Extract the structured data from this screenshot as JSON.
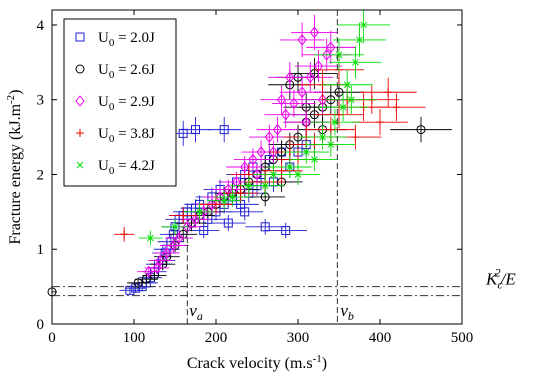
{
  "chart_data": {
    "type": "scatter",
    "xlabel": "Crack velocity (m.s",
    "xlabel_sup": "-1",
    "xlabel_end": ")",
    "ylabel": "Fracture energy (kJ.m",
    "ylabel_sup": "-2",
    "ylabel_end": ")",
    "xlim": [
      0,
      500
    ],
    "ylim": [
      0,
      4.2
    ],
    "xticks": [
      "0",
      "100",
      "200",
      "300",
      "400",
      "500"
    ],
    "yticks": [
      "0",
      "1",
      "2",
      "3",
      "4"
    ],
    "legend_position": "top-left",
    "grid": false,
    "annotations": {
      "va": {
        "base": "v",
        "sub": "a",
        "x": 165
      },
      "vb": {
        "base": "v",
        "sub": "b",
        "x": 348
      },
      "kc": {
        "base": "K",
        "sub": "c",
        "sup": "2",
        "rest": "/E",
        "levels": [
          0.38,
          0.5
        ]
      }
    },
    "series": [
      {
        "name": "U",
        "name_sub": "0",
        "name_rest": " = 2.0J",
        "marker": "square",
        "color": "#1f1fd0",
        "points": [
          [
            95,
            0.45
          ],
          [
            102,
            0.48
          ],
          [
            110,
            0.5
          ],
          [
            115,
            0.55
          ],
          [
            120,
            0.62
          ],
          [
            125,
            0.7
          ],
          [
            130,
            0.8
          ],
          [
            135,
            0.85
          ],
          [
            138,
            0.95
          ],
          [
            140,
            1.0
          ],
          [
            145,
            1.1
          ],
          [
            148,
            1.2
          ],
          [
            150,
            1.3
          ],
          [
            155,
            1.4
          ],
          [
            160,
            1.45
          ],
          [
            165,
            1.5
          ],
          [
            170,
            1.35
          ],
          [
            175,
            1.55
          ],
          [
            180,
            1.6
          ],
          [
            185,
            1.25
          ],
          [
            190,
            1.4
          ],
          [
            195,
            1.7
          ],
          [
            200,
            1.5
          ],
          [
            205,
            1.8
          ],
          [
            210,
            1.6
          ],
          [
            215,
            1.35
          ],
          [
            220,
            1.7
          ],
          [
            225,
            1.9
          ],
          [
            230,
            1.6
          ],
          [
            235,
            2.0
          ],
          [
            240,
            1.75
          ],
          [
            245,
            2.1
          ],
          [
            250,
            1.85
          ],
          [
            255,
            2.0
          ],
          [
            260,
            1.3
          ],
          [
            265,
            2.2
          ],
          [
            270,
            1.9
          ],
          [
            280,
            2.3
          ],
          [
            285,
            1.25
          ],
          [
            290,
            2.1
          ],
          [
            300,
            2.3
          ],
          [
            310,
            2.4
          ],
          [
            160,
            2.55
          ],
          [
            175,
            2.6
          ],
          [
            210,
            2.6
          ],
          [
            235,
            1.5
          ]
        ]
      },
      {
        "name": "U",
        "name_sub": "0",
        "name_rest": " = 2.6J",
        "marker": "circle",
        "color": "#000000",
        "points": [
          [
            0,
            0.43
          ],
          [
            105,
            0.55
          ],
          [
            115,
            0.6
          ],
          [
            125,
            0.65
          ],
          [
            135,
            0.8
          ],
          [
            140,
            0.9
          ],
          [
            150,
            1.05
          ],
          [
            160,
            1.2
          ],
          [
            170,
            1.35
          ],
          [
            180,
            1.45
          ],
          [
            190,
            1.5
          ],
          [
            200,
            1.6
          ],
          [
            210,
            1.7
          ],
          [
            220,
            1.75
          ],
          [
            230,
            1.8
          ],
          [
            240,
            1.9
          ],
          [
            250,
            2.0
          ],
          [
            260,
            2.1
          ],
          [
            270,
            2.2
          ],
          [
            280,
            2.3
          ],
          [
            290,
            2.4
          ],
          [
            300,
            2.5
          ],
          [
            310,
            2.7
          ],
          [
            320,
            2.8
          ],
          [
            330,
            2.9
          ],
          [
            340,
            3.0
          ],
          [
            350,
            3.1
          ],
          [
            290,
            3.2
          ],
          [
            300,
            3.3
          ],
          [
            320,
            3.35
          ],
          [
            310,
            2.9
          ],
          [
            330,
            2.6
          ],
          [
            450,
            2.6
          ],
          [
            280,
            1.9
          ],
          [
            260,
            1.7
          ]
        ]
      },
      {
        "name": "U",
        "name_sub": "0",
        "name_rest": " = 2.9J",
        "marker": "diamond",
        "color": "#ee00ee",
        "points": [
          [
            118,
            0.7
          ],
          [
            128,
            0.75
          ],
          [
            132,
            0.85
          ],
          [
            140,
            0.95
          ],
          [
            148,
            1.05
          ],
          [
            155,
            1.15
          ],
          [
            165,
            1.3
          ],
          [
            175,
            1.4
          ],
          [
            185,
            1.5
          ],
          [
            195,
            1.6
          ],
          [
            205,
            1.7
          ],
          [
            215,
            1.8
          ],
          [
            225,
            1.9
          ],
          [
            235,
            2.1
          ],
          [
            245,
            2.2
          ],
          [
            255,
            2.3
          ],
          [
            265,
            2.5
          ],
          [
            275,
            2.6
          ],
          [
            285,
            2.8
          ],
          [
            295,
            2.95
          ],
          [
            305,
            3.1
          ],
          [
            315,
            3.3
          ],
          [
            325,
            3.45
          ],
          [
            335,
            3.6
          ],
          [
            340,
            3.7
          ],
          [
            305,
            3.8
          ],
          [
            320,
            3.9
          ],
          [
            290,
            3.3
          ],
          [
            280,
            3.0
          ],
          [
            310,
            2.7
          ],
          [
            330,
            3.0
          ],
          [
            270,
            2.3
          ],
          [
            250,
            2.0
          ]
        ]
      },
      {
        "name": "U",
        "name_sub": "0",
        "name_rest": " = 3.8J",
        "marker": "plus",
        "color": "#ee0000",
        "points": [
          [
            88,
            1.2
          ],
          [
            160,
            1.45
          ],
          [
            200,
            1.6
          ],
          [
            230,
            1.75
          ],
          [
            260,
            1.9
          ],
          [
            280,
            2.05
          ],
          [
            300,
            2.2
          ],
          [
            320,
            2.4
          ],
          [
            340,
            2.6
          ],
          [
            350,
            2.8
          ],
          [
            360,
            3.0
          ],
          [
            380,
            2.9
          ],
          [
            400,
            2.7
          ],
          [
            420,
            2.9
          ],
          [
            410,
            3.1
          ],
          [
            370,
            2.5
          ],
          [
            330,
            3.2
          ],
          [
            350,
            3.4
          ],
          [
            390,
            3.0
          ],
          [
            310,
            2.5
          ],
          [
            290,
            2.3
          ],
          [
            240,
            2.0
          ]
        ]
      },
      {
        "name": "U",
        "name_sub": "0",
        "name_rest": " = 4.2J",
        "marker": "cross",
        "color": "#00dd00",
        "points": [
          [
            120,
            1.15
          ],
          [
            150,
            1.3
          ],
          [
            180,
            1.5
          ],
          [
            210,
            1.65
          ],
          [
            240,
            1.85
          ],
          [
            270,
            2.0
          ],
          [
            290,
            2.1
          ],
          [
            310,
            2.3
          ],
          [
            330,
            2.5
          ],
          [
            345,
            2.7
          ],
          [
            355,
            2.9
          ],
          [
            360,
            3.2
          ],
          [
            370,
            3.5
          ],
          [
            375,
            3.8
          ],
          [
            365,
            3.0
          ],
          [
            340,
            2.4
          ],
          [
            300,
            2.0
          ],
          [
            260,
            1.85
          ],
          [
            220,
            1.7
          ],
          [
            380,
            4.0
          ],
          [
            350,
            3.6
          ],
          [
            320,
            2.2
          ]
        ]
      }
    ]
  }
}
